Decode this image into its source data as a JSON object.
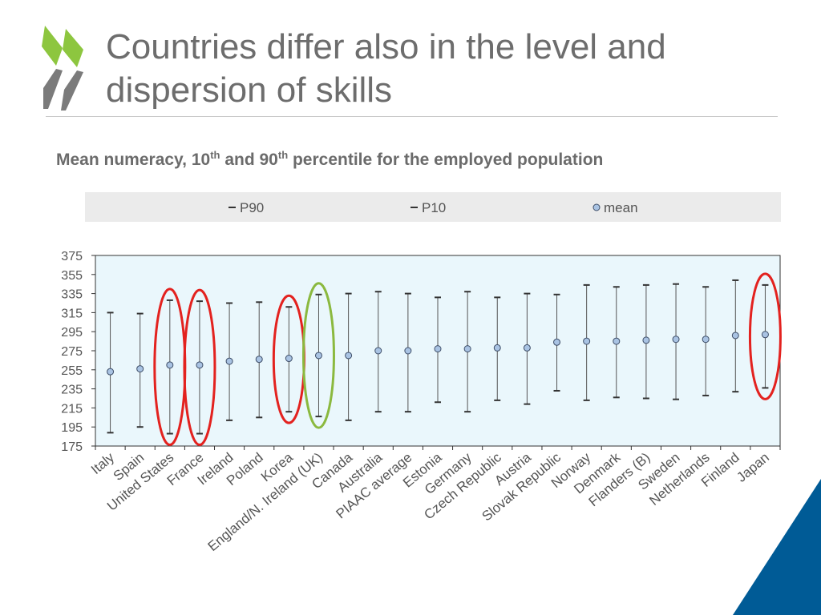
{
  "slide": {
    "title": "Countries differ also in the level and dispersion of skills",
    "subtitle_parts": [
      "Mean numeracy, 10",
      "th",
      " and 90",
      "th",
      " percentile for the employed population"
    ]
  },
  "colors": {
    "logo_green": "#8dc63f",
    "logo_gray": "#7b7b7b",
    "plot_bg": "#eaf7fc",
    "legend_bg": "#ebebeb",
    "marker_fill": "#a9c3e3",
    "marker_stroke": "#3d4d67",
    "bar_color": "#555555",
    "highlight_red": "#e3221f",
    "highlight_green": "#8bb93f",
    "corner_blue": "#005b96"
  },
  "chart_data": {
    "type": "error-bar-dot",
    "title": "Mean numeracy, 10th and 90th percentile for the employed population",
    "categories": [
      "Italy",
      "Spain",
      "United States",
      "France",
      "Ireland",
      "Poland",
      "Korea",
      "England/N. Ireland (UK)",
      "Canada",
      "Australia",
      "PIAAC average",
      "Estonia",
      "Germany",
      "Czech Republic",
      "Austria",
      "Slovak Republic",
      "Norway",
      "Denmark",
      "Flanders (B)",
      "Sweden",
      "Netherlands",
      "Finland",
      "Japan"
    ],
    "series": [
      {
        "name": "P90",
        "values": [
          315,
          314,
          328,
          327,
          325,
          326,
          321,
          334,
          335,
          337,
          335,
          331,
          337,
          331,
          335,
          334,
          344,
          342,
          344,
          345,
          342,
          349,
          344
        ]
      },
      {
        "name": "P10",
        "values": [
          189,
          195,
          188,
          188,
          202,
          205,
          211,
          206,
          202,
          211,
          211,
          221,
          211,
          223,
          219,
          233,
          223,
          226,
          225,
          224,
          228,
          232,
          236
        ]
      },
      {
        "name": "mean",
        "values": [
          253,
          256,
          260,
          260,
          264,
          266,
          267,
          270,
          270,
          275,
          275,
          277,
          277,
          278,
          278,
          284,
          285,
          285,
          286,
          287,
          287,
          291,
          292
        ]
      }
    ],
    "ylim": [
      175,
      375
    ],
    "yticks": [
      "375",
      "355",
      "335",
      "315",
      "295",
      "275",
      "255",
      "235",
      "215",
      "195",
      "175"
    ],
    "legend_position": "top",
    "grid": false,
    "highlights": [
      {
        "categories": [
          "United States",
          "France",
          "Korea",
          "Japan"
        ],
        "color": "red"
      },
      {
        "categories": [
          "England/N. Ireland (UK)"
        ],
        "color": "green"
      }
    ]
  }
}
